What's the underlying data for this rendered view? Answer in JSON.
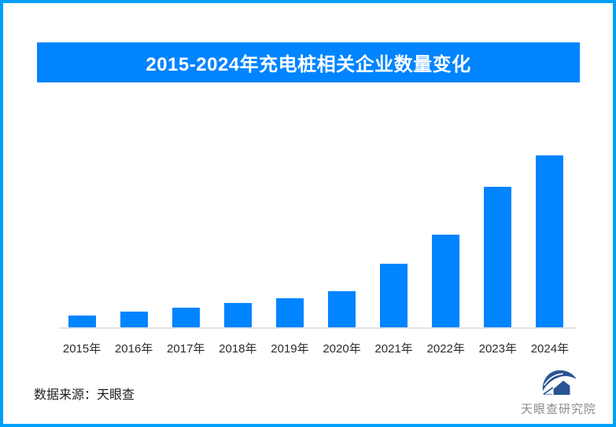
{
  "header": {
    "title": "2015-2024年充电桩相关企业数量变化"
  },
  "chart_data": {
    "type": "bar",
    "title": "2015-2024年充电桩相关企业数量变化",
    "categories": [
      "2015年",
      "2016年",
      "2017年",
      "2018年",
      "2019年",
      "2020年",
      "2021年",
      "2022年",
      "2023年",
      "2024年"
    ],
    "values": [
      6.8,
      9.1,
      11.4,
      14.2,
      16.9,
      21.0,
      37.0,
      53.9,
      81.7,
      100
    ],
    "value_scale": "relative; no value axis or data labels shown in image, 2024 bar = 100",
    "xlabel": "",
    "ylabel": "",
    "ylim": [
      0,
      100
    ],
    "bar_color": "#0084FF",
    "grid": false,
    "legend": false
  },
  "footer": {
    "source": "数据来源：天眼查",
    "logo_text": "天眼查研究院"
  },
  "colors": {
    "accent_blue": "#0084FF",
    "frame_border": "#00A0F8",
    "axis_line": "#E3E3E3",
    "logo_blue": "#2A5393",
    "logo_text_gray": "#8C8C8C"
  }
}
